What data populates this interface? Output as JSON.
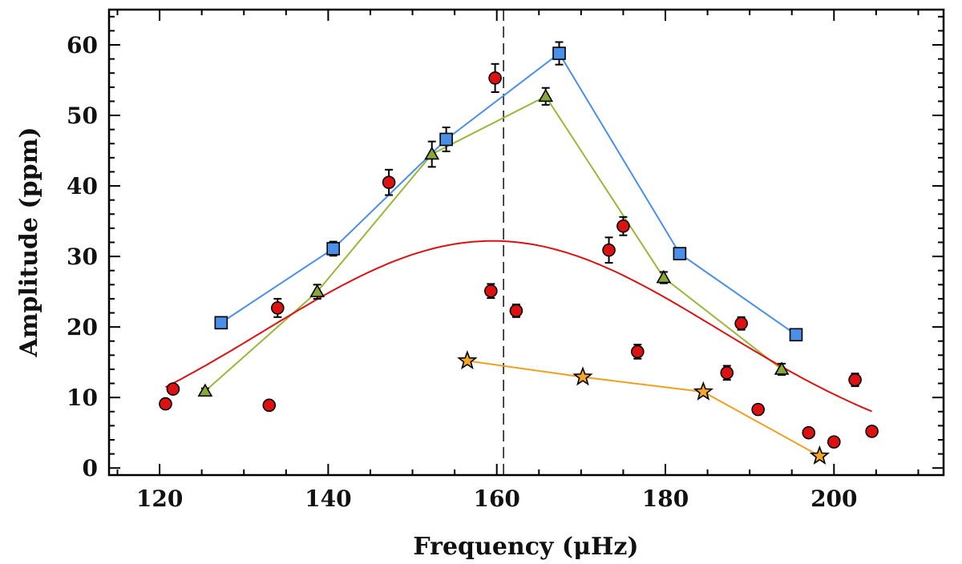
{
  "chart_data": {
    "type": "scatter",
    "title": "",
    "xlabel": "Frequency (μHz)",
    "ylabel": "Amplitude (ppm)",
    "xlim": [
      114,
      213
    ],
    "ylim": [
      -1,
      65
    ],
    "xticks": [
      120,
      140,
      160,
      180,
      200
    ],
    "yticks": [
      0,
      10,
      20,
      30,
      40,
      50,
      60
    ],
    "vline": {
      "x": 160.8,
      "style": "dashed"
    },
    "series": [
      {
        "name": "circles",
        "marker": "circle",
        "color": "#dd1111",
        "connected": false,
        "points": [
          {
            "x": 120.7,
            "y": 9.1,
            "err": 0.4
          },
          {
            "x": 121.6,
            "y": 11.2,
            "err": 0.4
          },
          {
            "x": 133.0,
            "y": 8.9,
            "err": 0.4
          },
          {
            "x": 134.0,
            "y": 22.7,
            "err": 1.3
          },
          {
            "x": 147.2,
            "y": 40.5,
            "err": 1.8
          },
          {
            "x": 159.3,
            "y": 25.1,
            "err": 1.0
          },
          {
            "x": 159.8,
            "y": 55.3,
            "err": 2.0
          },
          {
            "x": 162.3,
            "y": 22.3,
            "err": 0.9
          },
          {
            "x": 173.3,
            "y": 30.9,
            "err": 1.8
          },
          {
            "x": 175.0,
            "y": 34.3,
            "err": 1.3
          },
          {
            "x": 176.7,
            "y": 16.5,
            "err": 1.0
          },
          {
            "x": 187.3,
            "y": 13.5,
            "err": 1.0
          },
          {
            "x": 189.0,
            "y": 20.5,
            "err": 0.9
          },
          {
            "x": 191.0,
            "y": 8.3,
            "err": 0.5
          },
          {
            "x": 197.0,
            "y": 5.0,
            "err": 0.5
          },
          {
            "x": 200.0,
            "y": 3.7,
            "err": 0.4
          },
          {
            "x": 202.5,
            "y": 12.5,
            "err": 0.9
          },
          {
            "x": 204.5,
            "y": 5.2,
            "err": 0.4
          }
        ]
      },
      {
        "name": "squares",
        "marker": "square",
        "color": "#4a8fe8",
        "lineColor": "#4a8fe8",
        "connected": true,
        "points": [
          {
            "x": 127.3,
            "y": 20.6,
            "err": 0.4
          },
          {
            "x": 140.6,
            "y": 31.1,
            "err": 1.0
          },
          {
            "x": 154.0,
            "y": 46.6,
            "err": 1.7
          },
          {
            "x": 167.4,
            "y": 58.8,
            "err": 1.6
          },
          {
            "x": 181.7,
            "y": 30.4,
            "err": 0.4
          },
          {
            "x": 195.5,
            "y": 18.9,
            "err": 0.5
          }
        ]
      },
      {
        "name": "triangles",
        "marker": "triangle",
        "color": "#88a83a",
        "lineColor": "#99b83a",
        "connected": true,
        "points": [
          {
            "x": 125.4,
            "y": 10.9,
            "err": 0.4
          },
          {
            "x": 138.7,
            "y": 25.0,
            "err": 1.0
          },
          {
            "x": 152.3,
            "y": 44.5,
            "err": 1.8
          },
          {
            "x": 165.8,
            "y": 52.7,
            "err": 1.2
          },
          {
            "x": 179.8,
            "y": 27.0,
            "err": 0.8
          },
          {
            "x": 193.8,
            "y": 14.0,
            "err": 0.8
          }
        ]
      },
      {
        "name": "stars",
        "marker": "star",
        "color": "#f5a623",
        "lineColor": "#f0a020",
        "connected": true,
        "points": [
          {
            "x": 156.5,
            "y": 15.2,
            "err": 0
          },
          {
            "x": 170.2,
            "y": 12.9,
            "err": 0
          },
          {
            "x": 184.5,
            "y": 10.8,
            "err": 0
          },
          {
            "x": 198.3,
            "y": 1.7,
            "err": 0
          }
        ]
      }
    ],
    "fit": {
      "name": "gaussian fit",
      "color": "#dd1111",
      "amplitude": 32.2,
      "center": 159.5,
      "sigma": 27.0,
      "xrange": [
        120.7,
        204.5
      ]
    }
  }
}
